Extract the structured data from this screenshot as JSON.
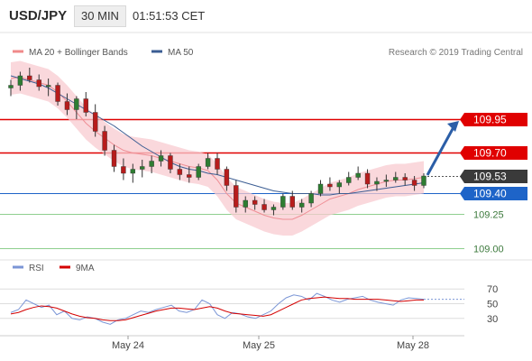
{
  "header": {
    "symbol": "USD/JPY",
    "timeframe": "30 MIN",
    "time": "01:51:53 CET"
  },
  "legend": {
    "item1": "MA 20 + Bollinger Bands",
    "item2": "MA 50",
    "credit": "Research © 2019 Trading Central"
  },
  "colors": {
    "candle_up": "#2e7d32",
    "candle_down": "#b71c1c",
    "bands_fill": "#f8cbd0",
    "bands_line": "#ef8f96",
    "ma50": "#3b5d93",
    "resistance": "#e00000",
    "support_blue": "#1e64c8",
    "support_green": "#8fcf8f",
    "arrow": "#2b5ea7",
    "rsi": "#7b96d6",
    "ma9": "#d40000"
  },
  "chart_data": [
    {
      "type": "candlestick",
      "title": "USD/JPY 30 MIN",
      "x_ticks": [
        "May 24",
        "May 25",
        "May 28"
      ],
      "levels": [
        {
          "value": "109.95",
          "kind": "resistance",
          "color": "#e00000"
        },
        {
          "value": "109.70",
          "kind": "resistance",
          "color": "#e00000"
        },
        {
          "value": "109.53",
          "kind": "last",
          "color": "#3a3a3a"
        },
        {
          "value": "109.40",
          "kind": "support",
          "color": "#1e64c8"
        },
        {
          "value": "109.25",
          "kind": "support",
          "color": "#8fcf8f"
        },
        {
          "value": "109.00",
          "kind": "support",
          "color": "#8fcf8f"
        }
      ],
      "series": [
        {
          "name": "MA 20 + Bollinger Bands",
          "values": [
            110.25,
            110.26,
            110.24,
            110.22,
            110.2,
            110.15,
            110.08,
            110.0,
            109.92,
            109.86,
            109.81,
            109.76,
            109.72,
            109.7,
            109.69,
            109.68,
            109.66,
            109.64,
            109.62,
            109.6,
            109.59,
            109.57,
            109.5,
            109.4,
            109.33,
            109.3,
            109.27,
            109.24,
            109.22,
            109.21,
            109.21,
            109.24,
            109.28,
            109.32,
            109.36,
            109.38,
            109.4,
            109.43,
            109.45,
            109.47,
            109.49,
            109.5,
            109.5,
            109.51,
            109.52
          ]
        },
        {
          "name": "MA 50",
          "values": [
            110.27,
            110.25,
            110.23,
            110.21,
            110.18,
            110.14,
            110.1,
            110.06,
            110.02,
            109.98,
            109.94,
            109.9,
            109.85,
            109.8,
            109.75,
            109.71,
            109.67,
            109.63,
            109.6,
            109.58,
            109.57,
            109.55,
            109.54,
            109.52,
            109.5,
            109.48,
            109.46,
            109.44,
            109.42,
            109.41,
            109.4,
            109.4,
            109.4,
            109.39,
            109.39,
            109.4,
            109.4,
            109.41,
            109.42,
            109.43,
            109.44,
            109.45,
            109.46,
            109.47,
            109.48
          ]
        }
      ],
      "ohlc": [
        [
          110.18,
          110.24,
          110.12,
          110.2
        ],
        [
          110.2,
          110.3,
          110.16,
          110.27
        ],
        [
          110.27,
          110.33,
          110.22,
          110.24
        ],
        [
          110.24,
          110.28,
          110.16,
          110.19
        ],
        [
          110.19,
          110.25,
          110.12,
          110.2
        ],
        [
          110.2,
          110.22,
          110.05,
          110.08
        ],
        [
          110.08,
          110.14,
          109.98,
          110.02
        ],
        [
          110.02,
          110.12,
          109.95,
          110.1
        ],
        [
          110.1,
          110.15,
          109.97,
          110.0
        ],
        [
          110.0,
          110.06,
          109.82,
          109.86
        ],
        [
          109.86,
          109.9,
          109.68,
          109.72
        ],
        [
          109.72,
          109.76,
          109.56,
          109.6
        ],
        [
          109.6,
          109.66,
          109.5,
          109.55
        ],
        [
          109.55,
          109.62,
          109.48,
          109.58
        ],
        [
          109.58,
          109.65,
          109.52,
          109.6
        ],
        [
          109.6,
          109.68,
          109.55,
          109.64
        ],
        [
          109.64,
          109.72,
          109.6,
          109.68
        ],
        [
          109.68,
          109.7,
          109.55,
          109.58
        ],
        [
          109.58,
          109.62,
          109.5,
          109.54
        ],
        [
          109.54,
          109.6,
          109.48,
          109.52
        ],
        [
          109.52,
          109.62,
          109.5,
          109.6
        ],
        [
          109.6,
          109.7,
          109.58,
          109.66
        ],
        [
          109.66,
          109.7,
          109.54,
          109.58
        ],
        [
          109.58,
          109.6,
          109.42,
          109.46
        ],
        [
          109.46,
          109.5,
          109.26,
          109.3
        ],
        [
          109.3,
          109.38,
          109.26,
          109.35
        ],
        [
          109.35,
          109.38,
          109.28,
          109.32
        ],
        [
          109.32,
          109.36,
          109.26,
          109.28
        ],
        [
          109.28,
          109.32,
          109.24,
          109.3
        ],
        [
          109.3,
          109.4,
          109.28,
          109.38
        ],
        [
          109.38,
          109.42,
          109.28,
          109.3
        ],
        [
          109.3,
          109.36,
          109.26,
          109.33
        ],
        [
          109.33,
          109.42,
          109.3,
          109.4
        ],
        [
          109.4,
          109.5,
          109.38,
          109.47
        ],
        [
          109.47,
          109.52,
          109.42,
          109.45
        ],
        [
          109.45,
          109.5,
          109.4,
          109.48
        ],
        [
          109.48,
          109.56,
          109.46,
          109.52
        ],
        [
          109.52,
          109.6,
          109.5,
          109.55
        ],
        [
          109.55,
          109.58,
          109.44,
          109.47
        ],
        [
          109.47,
          109.52,
          109.42,
          109.49
        ],
        [
          109.49,
          109.54,
          109.45,
          109.5
        ],
        [
          109.5,
          109.56,
          109.48,
          109.52
        ],
        [
          109.52,
          109.55,
          109.46,
          109.5
        ],
        [
          109.5,
          109.53,
          109.42,
          109.46
        ],
        [
          109.46,
          109.55,
          109.44,
          109.53
        ]
      ],
      "ylim": [
        108.95,
        110.35
      ],
      "projection": {
        "from": "109.53",
        "to": "109.95"
      }
    },
    {
      "type": "line",
      "title": "",
      "y_ticks": [
        "70",
        "50",
        "30"
      ],
      "ylim": [
        15,
        85
      ],
      "series": [
        {
          "name": "RSI",
          "values": [
            38,
            42,
            55,
            50,
            45,
            48,
            35,
            40,
            30,
            28,
            32,
            30,
            25,
            22,
            28,
            30,
            35,
            40,
            38,
            42,
            45,
            48,
            40,
            38,
            42,
            55,
            50,
            35,
            30,
            38,
            36,
            32,
            30,
            35,
            40,
            50,
            58,
            62,
            60,
            55,
            64,
            60,
            55,
            52,
            56,
            58,
            60,
            55,
            52,
            50,
            48,
            55,
            58,
            57,
            56
          ]
        },
        {
          "name": "9MA",
          "values": [
            36,
            38,
            42,
            45,
            47,
            46,
            44,
            40,
            36,
            33,
            31,
            30,
            28,
            27,
            27,
            28,
            31,
            34,
            37,
            40,
            42,
            44,
            44,
            43,
            42,
            44,
            46,
            44,
            40,
            37,
            36,
            35,
            34,
            33,
            35,
            40,
            45,
            50,
            55,
            57,
            58,
            59,
            58,
            57,
            57,
            56,
            56,
            56,
            56,
            55,
            54,
            53,
            54,
            55,
            55
          ]
        }
      ]
    }
  ]
}
